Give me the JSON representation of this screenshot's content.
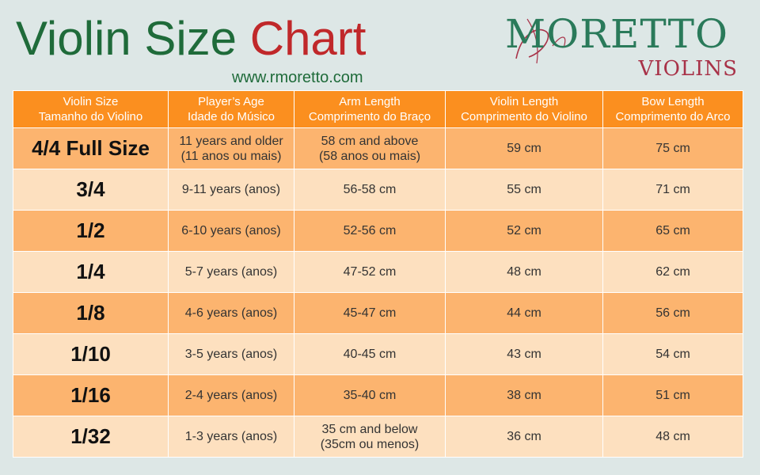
{
  "header": {
    "title_part1": "Violin Size",
    "title_part2": "Chart",
    "url": "www.rmoretto.com"
  },
  "logo": {
    "brand": "MORETTO",
    "sub": "VIOLINS",
    "brand_color": "#2a7a5a",
    "sub_color": "#a83248"
  },
  "colors": {
    "title_green": "#1f6b3a",
    "title_red": "#c0282a",
    "header_orange": "#fb8f1f",
    "row_dark": "#fcb46f",
    "row_light": "#fde0bf",
    "background": "#dde7e6"
  },
  "table": {
    "columns": [
      {
        "en": "Violin Size",
        "pt": "Tamanho do Violino"
      },
      {
        "en": "Player’s Age",
        "pt": "Idade do Músico"
      },
      {
        "en": "Arm Length",
        "pt": "Comprimento do Braço"
      },
      {
        "en": "Violin Length",
        "pt": "Comprimento do Violino"
      },
      {
        "en": "Bow Length",
        "pt": "Comprimento do Arco"
      }
    ],
    "rows": [
      {
        "size": "4/4 Full Size",
        "age": [
          "11 years and older",
          "(11 anos ou mais)"
        ],
        "arm": [
          "58 cm and above",
          "(58 anos ou mais)"
        ],
        "violin": "59 cm",
        "bow": "75 cm"
      },
      {
        "size": "3/4",
        "age": [
          "9-11 years (anos)"
        ],
        "arm": [
          "56-58 cm"
        ],
        "violin": "55 cm",
        "bow": "71 cm"
      },
      {
        "size": "1/2",
        "age": [
          "6-10 years (anos)"
        ],
        "arm": [
          "52-56 cm"
        ],
        "violin": "52 cm",
        "bow": "65 cm"
      },
      {
        "size": "1/4",
        "age": [
          "5-7 years (anos)"
        ],
        "arm": [
          "47-52 cm"
        ],
        "violin": "48 cm",
        "bow": "62 cm"
      },
      {
        "size": "1/8",
        "age": [
          "4-6 years (anos)"
        ],
        "arm": [
          "45-47 cm"
        ],
        "violin": "44 cm",
        "bow": "56 cm"
      },
      {
        "size": "1/10",
        "age": [
          "3-5 years (anos)"
        ],
        "arm": [
          "40-45 cm"
        ],
        "violin": "43 cm",
        "bow": "54 cm"
      },
      {
        "size": "1/16",
        "age": [
          "2-4 years (anos)"
        ],
        "arm": [
          "35-40 cm"
        ],
        "violin": "38 cm",
        "bow": "51 cm"
      },
      {
        "size": "1/32",
        "age": [
          "1-3 years (anos)"
        ],
        "arm": [
          "35 cm and below",
          "(35cm ou menos)"
        ],
        "violin": "36 cm",
        "bow": "48 cm"
      }
    ]
  }
}
